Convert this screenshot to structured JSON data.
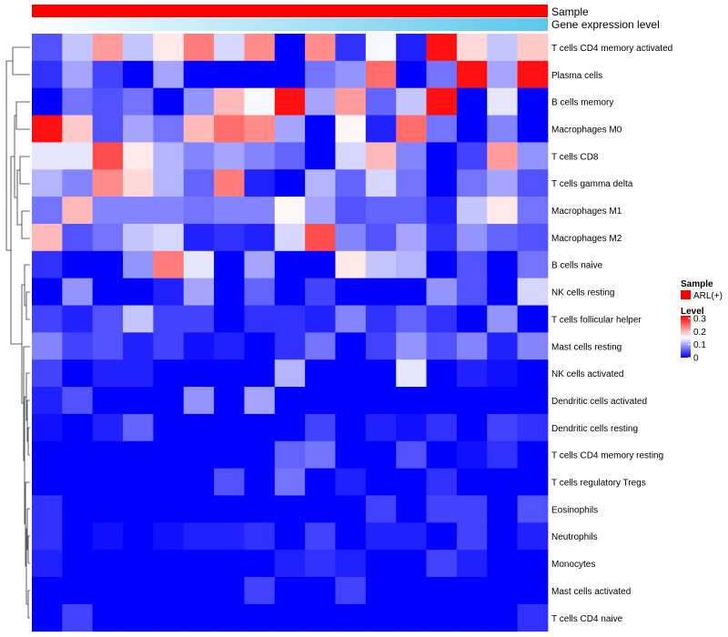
{
  "chart_data": {
    "type": "heatmap",
    "annotations": [
      {
        "name": "Sample",
        "legend_title": "Sample",
        "legend_label": "ARL(+)",
        "color": "#ff0000"
      },
      {
        "name": "Gene expression level",
        "gradient_from": "#ffffff",
        "gradient_to": "#5bc6ec"
      }
    ],
    "legend": {
      "title": "Level",
      "ticks": [
        0,
        0.1,
        0.2,
        0.3
      ],
      "range": [
        0,
        0.32
      ]
    },
    "colors": {
      "low": "#0000ff",
      "mid": "#ffffff",
      "high": "#ff0000"
    },
    "rows": [
      "T cells CD4 memory activated",
      "Plasma cells",
      "B cells memory",
      "Macrophages M0",
      "T cells CD8",
      "T cells gamma delta",
      "Macrophages M1",
      "Macrophages M2",
      "B cells naive",
      "NK cells resting",
      "T cells follicular helper",
      "Mast cells resting",
      "NK cells activated",
      "Dendritic cells activated",
      "Dendritic cells resting",
      "T cells CD4 memory resting",
      "T cells regulatory  Tregs",
      "Eosinophils",
      "Neutrophils",
      "Monocytes",
      "Mast cells activated",
      "T cells CD4 naive"
    ],
    "values": [
      [
        0.05,
        0.12,
        0.22,
        0.12,
        0.17,
        0.24,
        0.13,
        0.23,
        0.0,
        0.23,
        0.03,
        0.15,
        0.02,
        0.31,
        0.18,
        0.12,
        0.19
      ],
      [
        0.03,
        0.1,
        0.04,
        0.0,
        0.1,
        0.0,
        0.0,
        0.0,
        0.0,
        0.07,
        0.09,
        0.25,
        0.0,
        0.07,
        0.31,
        0.1,
        0.31
      ],
      [
        0.0,
        0.07,
        0.05,
        0.07,
        0.0,
        0.09,
        0.2,
        0.15,
        0.31,
        0.1,
        0.22,
        0.06,
        0.12,
        0.31,
        0.0,
        0.14,
        0.0
      ],
      [
        0.31,
        0.19,
        0.05,
        0.1,
        0.07,
        0.2,
        0.25,
        0.23,
        0.1,
        0.0,
        0.16,
        0.02,
        0.25,
        0.07,
        0.0,
        0.08,
        0.0
      ],
      [
        0.14,
        0.14,
        0.27,
        0.17,
        0.11,
        0.08,
        0.1,
        0.08,
        0.06,
        0.0,
        0.13,
        0.2,
        0.08,
        0.0,
        0.04,
        0.22,
        0.09
      ],
      [
        0.11,
        0.08,
        0.23,
        0.18,
        0.11,
        0.06,
        0.24,
        0.02,
        0.0,
        0.11,
        0.06,
        0.13,
        0.07,
        0.0,
        0.07,
        0.1,
        0.05
      ],
      [
        0.07,
        0.2,
        0.08,
        0.08,
        0.08,
        0.07,
        0.08,
        0.08,
        0.16,
        0.1,
        0.05,
        0.06,
        0.06,
        0.02,
        0.12,
        0.17,
        0.07
      ],
      [
        0.2,
        0.05,
        0.07,
        0.12,
        0.13,
        0.02,
        0.03,
        0.02,
        0.13,
        0.27,
        0.08,
        0.05,
        0.1,
        0.03,
        0.09,
        0.06,
        0.05
      ],
      [
        0.03,
        0.0,
        0.0,
        0.09,
        0.24,
        0.14,
        0.0,
        0.1,
        0.0,
        0.0,
        0.17,
        0.12,
        0.11,
        0.0,
        0.05,
        0.0,
        0.07
      ],
      [
        0.0,
        0.09,
        0.0,
        0.0,
        0.02,
        0.1,
        0.0,
        0.06,
        0.0,
        0.04,
        0.0,
        0.0,
        0.0,
        0.09,
        0.05,
        0.0,
        0.13
      ],
      [
        0.04,
        0.02,
        0.05,
        0.12,
        0.04,
        0.04,
        0.0,
        0.03,
        0.03,
        0.02,
        0.08,
        0.03,
        0.06,
        0.03,
        0.0,
        0.09,
        0.0
      ],
      [
        0.08,
        0.04,
        0.05,
        0.02,
        0.04,
        0.01,
        0.02,
        0.0,
        0.03,
        0.07,
        0.0,
        0.04,
        0.09,
        0.05,
        0.08,
        0.02,
        0.08
      ],
      [
        0.04,
        0.0,
        0.02,
        0.02,
        0.0,
        0.0,
        0.0,
        0.0,
        0.11,
        0.0,
        0.0,
        0.0,
        0.14,
        0.0,
        0.02,
        0.01,
        0.0
      ],
      [
        0.02,
        0.05,
        0.0,
        0.0,
        0.0,
        0.09,
        0.0,
        0.1,
        0.0,
        0.0,
        0.0,
        0.0,
        0.0,
        0.0,
        0.0,
        0.0,
        0.0
      ],
      [
        0.01,
        0.0,
        0.02,
        0.06,
        0.0,
        0.0,
        0.0,
        0.0,
        0.0,
        0.04,
        0.0,
        0.02,
        0.01,
        0.03,
        0.0,
        0.04,
        0.03
      ],
      [
        0.0,
        0.0,
        0.0,
        0.0,
        0.0,
        0.0,
        0.0,
        0.0,
        0.06,
        0.07,
        0.0,
        0.0,
        0.05,
        0.0,
        0.01,
        0.03,
        0.0
      ],
      [
        0.0,
        0.0,
        0.0,
        0.0,
        0.0,
        0.0,
        0.05,
        0.0,
        0.07,
        0.0,
        0.02,
        0.0,
        0.0,
        0.03,
        0.0,
        0.0,
        0.0
      ],
      [
        0.03,
        0.0,
        0.0,
        0.0,
        0.0,
        0.0,
        0.0,
        0.0,
        0.0,
        0.0,
        0.0,
        0.04,
        0.0,
        0.04,
        0.04,
        0.0,
        0.05
      ],
      [
        0.03,
        0.0,
        0.01,
        0.0,
        0.01,
        0.02,
        0.02,
        0.03,
        0.0,
        0.04,
        0.0,
        0.02,
        0.02,
        0.0,
        0.04,
        0.0,
        0.02
      ],
      [
        0.02,
        0.0,
        0.0,
        0.0,
        0.0,
        0.0,
        0.0,
        0.0,
        0.02,
        0.03,
        0.02,
        0.0,
        0.0,
        0.04,
        0.02,
        0.0,
        0.0
      ],
      [
        0.0,
        0.0,
        0.0,
        0.0,
        0.0,
        0.0,
        0.0,
        0.04,
        0.0,
        0.0,
        0.04,
        0.0,
        0.0,
        0.0,
        0.0,
        0.0,
        0.0
      ],
      [
        0.0,
        0.04,
        0.0,
        0.0,
        0.0,
        0.0,
        0.0,
        0.0,
        0.0,
        0.0,
        0.0,
        0.0,
        0.0,
        0.0,
        0.0,
        0.0,
        0.03
      ]
    ]
  }
}
